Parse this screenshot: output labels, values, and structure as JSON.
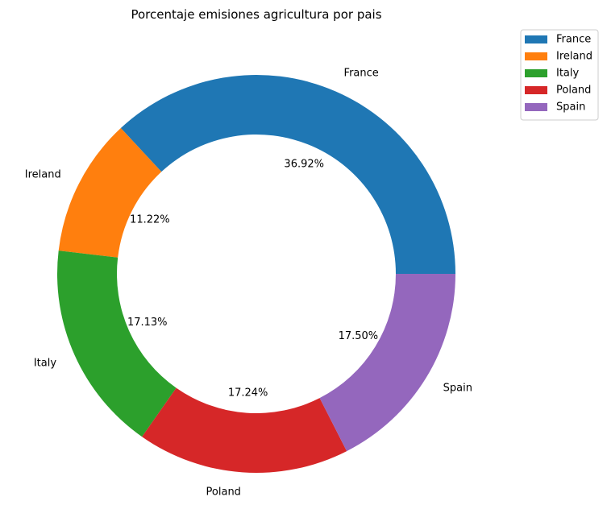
{
  "chart_data": {
    "type": "pie",
    "variant": "donut",
    "title": "Porcentaje emisiones agricultura por pais",
    "categories": [
      "France",
      "Ireland",
      "Italy",
      "Poland",
      "Spain"
    ],
    "values": [
      36.92,
      11.22,
      17.13,
      17.24,
      17.5
    ],
    "percent_labels": [
      "36.92%",
      "11.22%",
      "17.13%",
      "17.24%",
      "17.50%"
    ],
    "colors": [
      "#1f77b4",
      "#ff7f0e",
      "#2ca02c",
      "#d62728",
      "#9467bd"
    ],
    "legend": {
      "placement": "top-right",
      "entries": [
        "France",
        "Ireland",
        "Italy",
        "Poland",
        "Spain"
      ]
    }
  }
}
